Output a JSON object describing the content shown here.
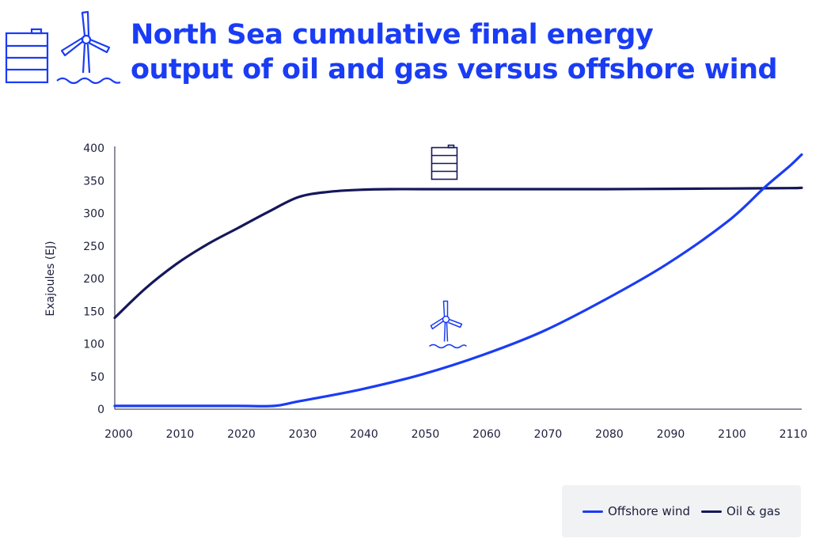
{
  "header": {
    "title_line1": "North Sea cumulative final energy",
    "title_line2": "output of oil and gas versus offshore wind",
    "icons": [
      "oil-barrel-icon",
      "wind-turbine-icon"
    ]
  },
  "colors": {
    "title": "#1a3cf5",
    "offshore_wind": "#1a3cf5",
    "oil_gas": "#15175c",
    "axis": "#1b1f3b"
  },
  "chart_data": {
    "type": "line",
    "title": "",
    "xlabel": "",
    "ylabel": "Exajoules (EJ)",
    "xlim": [
      2000,
      2112
    ],
    "ylim": [
      0,
      400
    ],
    "x_ticks": [
      2000,
      2010,
      2020,
      2030,
      2040,
      2050,
      2060,
      2070,
      2080,
      2090,
      2100,
      2110
    ],
    "y_ticks": [
      0,
      50,
      100,
      150,
      200,
      250,
      300,
      350,
      400
    ],
    "grid": false,
    "legend": "bottom-right",
    "series": [
      {
        "name": "Offshore wind",
        "color": "#1a3cf5",
        "icon": "wind-turbine-icon",
        "x": [
          2000,
          2010,
          2020,
          2026,
          2030,
          2040,
          2050,
          2060,
          2070,
          2080,
          2090,
          2100,
          2106,
          2110,
          2112
        ],
        "y": [
          5,
          5,
          5,
          5,
          12,
          30,
          53,
          83,
          120,
          168,
          222,
          288,
          340,
          372,
          390
        ]
      },
      {
        "name": "Oil & gas",
        "color": "#15175c",
        "icon": "oil-barrel-icon",
        "x": [
          2000,
          2005,
          2010,
          2015,
          2020,
          2025,
          2030,
          2035,
          2040,
          2045,
          2050,
          2060,
          2070,
          2080,
          2090,
          2100,
          2110,
          2112
        ],
        "y": [
          140,
          185,
          222,
          252,
          277,
          302,
          325,
          333,
          336,
          337,
          337,
          337,
          337,
          337,
          337.5,
          338,
          338.5,
          339
        ]
      }
    ]
  },
  "legend": {
    "items": [
      {
        "label": "Offshore wind",
        "color": "#1a3cf5"
      },
      {
        "label": "Oil & gas",
        "color": "#15175c"
      }
    ]
  }
}
